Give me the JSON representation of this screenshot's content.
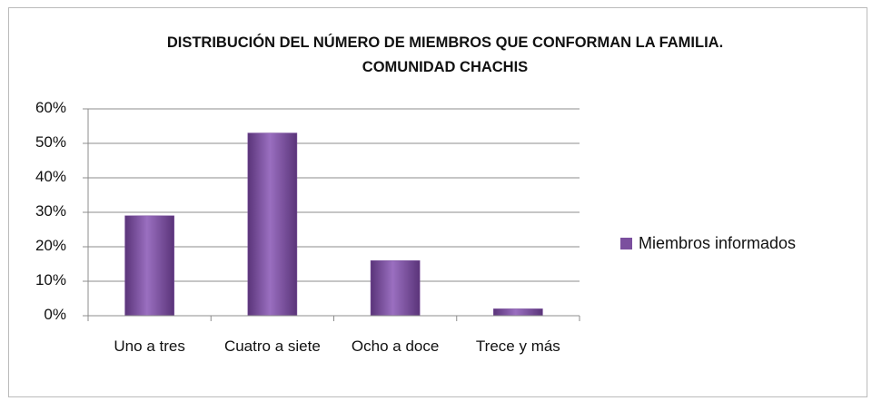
{
  "chart_data": {
    "type": "bar",
    "title": "DISTRIBUCIÓN DEL NÚMERO DE MIEMBROS QUE CONFORMAN LA FAMILIA. COMUNIDAD CHACHIS",
    "categories": [
      "Uno a tres",
      "Cuatro a siete",
      "Ocho a doce",
      "Trece y más"
    ],
    "series": [
      {
        "name": "Miembros informados",
        "color": "#7b4f9e",
        "values": [
          29,
          53,
          16,
          2
        ]
      }
    ],
    "ylim": [
      0,
      60
    ],
    "yticks": [
      {
        "value": 0,
        "label": "0%"
      },
      {
        "value": 10,
        "label": "10%"
      },
      {
        "value": 20,
        "label": "20%"
      },
      {
        "value": 30,
        "label": "30%"
      },
      {
        "value": 40,
        "label": "40%"
      },
      {
        "value": 50,
        "label": "50%"
      },
      {
        "value": 60,
        "label": "60%"
      }
    ],
    "grid": true,
    "legend": "right"
  }
}
